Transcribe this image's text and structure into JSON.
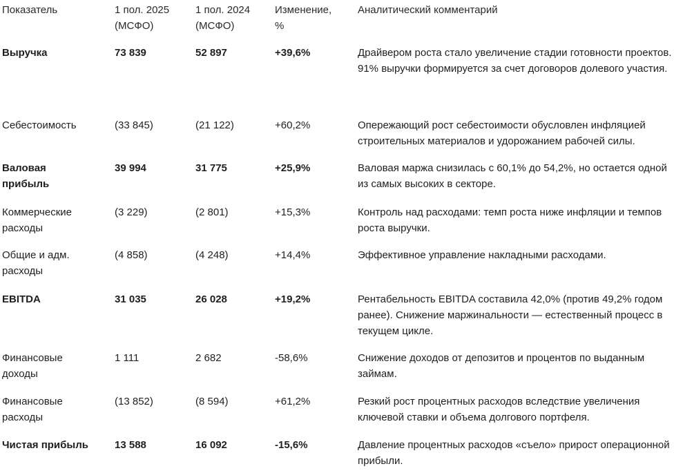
{
  "header": {
    "indicator": "Показатель",
    "y2025": "1 пол. 2025 (МСФО)",
    "y2024": "1 пол. 2024 (МСФО)",
    "change": "Изменение, %",
    "comment": "Аналитический комментарий"
  },
  "rows": [
    {
      "name": "Выручка",
      "y2025": "73 839",
      "y2024": "52 897",
      "change": "+39,6%",
      "comment": "Драйвером роста стало увеличение стадии готовности проектов. 91% выручки формируется за счет договоров долевого участия."
    },
    {
      "name": "Себестоимость",
      "y2025": "(33 845)",
      "y2024": "(21 122)",
      "change": "+60,2%",
      "comment": "Опережающий рост себестоимости обусловлен инфляцией строительных материалов и удорожанием рабочей силы."
    },
    {
      "name": "Валовая прибыль",
      "y2025": "39 994",
      "y2024": "31 775",
      "change": "+25,9%",
      "comment": "Валовая маржа снизилась с 60,1% до 54,2%, но остается одной из самых высоких в секторе."
    },
    {
      "name": "Коммерческие расходы",
      "y2025": "(3 229)",
      "y2024": "(2 801)",
      "change": "+15,3%",
      "comment": "Контроль над расходами: темп роста ниже инфляции и темпов роста выручки."
    },
    {
      "name": "Общие и адм. расходы",
      "y2025": "(4 858)",
      "y2024": "(4 248)",
      "change": "+14,4%",
      "comment": "Эффективное управление накладными расходами."
    },
    {
      "name": "EBITDA",
      "y2025": "31 035",
      "y2024": "26 028",
      "change": "+19,2%",
      "comment": "Рентабельность EBITDA составила 42,0% (против 49,2% годом ранее). Снижение маржинальности — естественный процесс в текущем цикле."
    },
    {
      "name": "Финансовые доходы",
      "y2025": "1 111",
      "y2024": "2 682",
      "change": "-58,6%",
      "comment": "Снижение доходов от депозитов и процентов по выданным займам."
    },
    {
      "name": "Финансовые расходы",
      "y2025": "(13 852)",
      "y2024": "(8 594)",
      "change": "+61,2%",
      "comment": "Резкий рост процентных расходов вследствие увеличения ключевой ставки и объема долгового портфеля."
    },
    {
      "name": "Чистая прибыль",
      "y2025": "13 588",
      "y2024": "16 092",
      "change": "-15,6%",
      "comment": "Давление процентных расходов «съело» прирост операционной прибыли."
    }
  ]
}
